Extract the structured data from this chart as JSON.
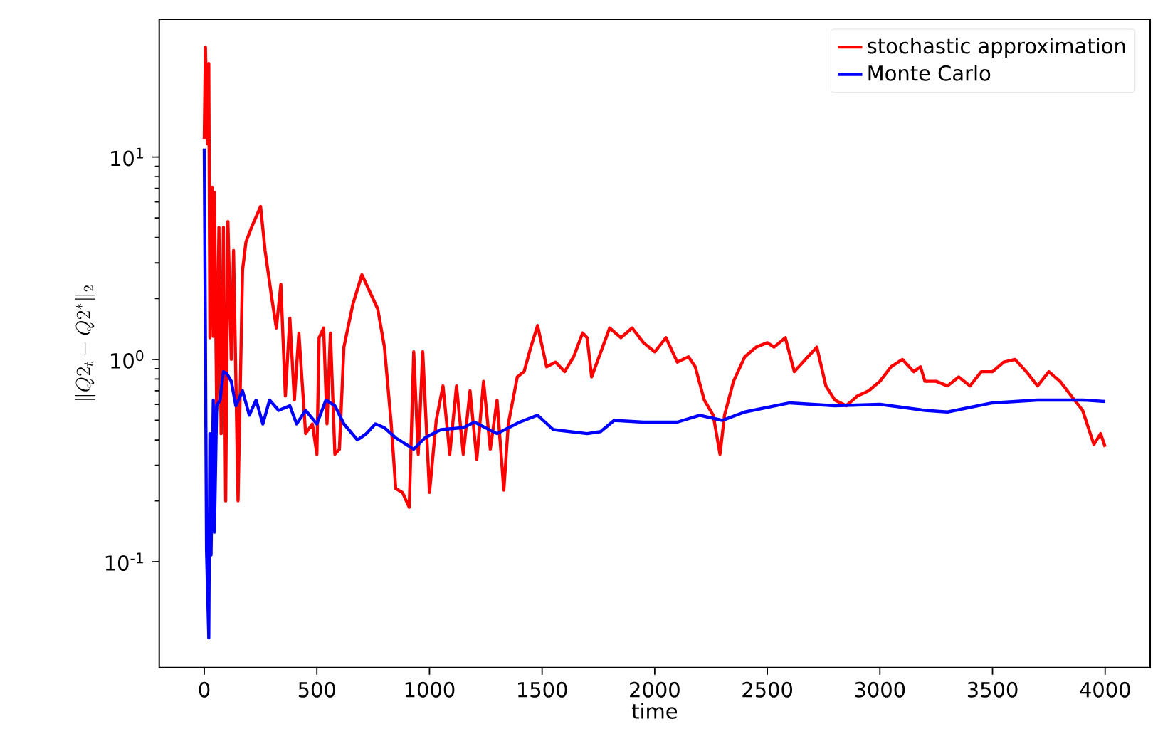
{
  "chart_data": {
    "type": "line",
    "xlabel": "time",
    "ylabel": "\\| Q2_t - Q2^* \\|_2",
    "xlim": [
      -200,
      4200
    ],
    "ylim": [
      0.03,
      48
    ],
    "log": "y",
    "grid": false,
    "legend": "top right",
    "marker": "none",
    "line_style": "solid",
    "xticks": [
      0,
      500,
      1000,
      1500,
      2000,
      2500,
      3000,
      3500,
      4000
    ],
    "yticks": [
      {
        "value": 0.1,
        "label": "10$^{-1}$"
      },
      {
        "value": 1,
        "label": "10$^{0}$"
      },
      {
        "value": 10,
        "label": "10$^{1}$"
      }
    ],
    "series": [
      {
        "name": "stochastic approximation",
        "color": "#ff0000",
        "x": [
          0,
          5,
          15,
          20,
          25,
          35,
          40,
          45,
          55,
          65,
          75,
          85,
          95,
          105,
          120,
          130,
          150,
          170,
          185,
          210,
          250,
          270,
          300,
          320,
          340,
          360,
          380,
          400,
          420,
          450,
          480,
          500,
          510,
          530,
          545,
          560,
          580,
          600,
          620,
          660,
          700,
          730,
          770,
          800,
          830,
          850,
          880,
          910,
          930,
          950,
          970,
          1000,
          1030,
          1060,
          1090,
          1120,
          1150,
          1180,
          1210,
          1240,
          1270,
          1300,
          1330,
          1350,
          1390,
          1420,
          1450,
          1480,
          1520,
          1560,
          1600,
          1640,
          1680,
          1700,
          1720,
          1800,
          1850,
          1900,
          1950,
          2000,
          2050,
          2100,
          2150,
          2180,
          2220,
          2260,
          2290,
          2310,
          2350,
          2400,
          2450,
          2500,
          2530,
          2580,
          2620,
          2680,
          2720,
          2760,
          2800,
          2850,
          2900,
          2950,
          3000,
          3050,
          3100,
          3150,
          3180,
          3200,
          3250,
          3300,
          3350,
          3400,
          3450,
          3500,
          3550,
          3600,
          3650,
          3700,
          3750,
          3800,
          3850,
          3900,
          3950,
          3980,
          4000
        ],
        "values": [
          12.3,
          35,
          11.6,
          29,
          1.28,
          7.1,
          1.3,
          6.7,
          0.56,
          4.5,
          0.43,
          4.5,
          0.2,
          4.8,
          1.0,
          3.45,
          0.2,
          2.77,
          3.8,
          4.5,
          5.7,
          3.45,
          2.0,
          1.43,
          2.35,
          0.66,
          1.6,
          0.63,
          1.35,
          0.43,
          0.48,
          0.34,
          1.28,
          1.43,
          0.48,
          1.35,
          0.34,
          0.36,
          1.15,
          1.88,
          2.62,
          2.22,
          1.78,
          1.15,
          0.48,
          0.23,
          0.22,
          0.186,
          1.09,
          0.34,
          1.09,
          0.22,
          0.5,
          0.74,
          0.34,
          0.74,
          0.34,
          0.7,
          0.32,
          0.78,
          0.36,
          0.63,
          0.226,
          0.48,
          0.82,
          0.87,
          1.15,
          1.47,
          0.92,
          0.97,
          0.87,
          1.03,
          1.35,
          1.28,
          0.82,
          1.43,
          1.28,
          1.43,
          1.21,
          1.09,
          1.28,
          0.97,
          1.03,
          0.92,
          0.63,
          0.53,
          0.34,
          0.53,
          0.78,
          1.03,
          1.15,
          1.21,
          1.15,
          1.28,
          0.87,
          1.03,
          1.15,
          0.74,
          0.63,
          0.59,
          0.66,
          0.7,
          0.78,
          0.92,
          1.0,
          0.87,
          0.92,
          0.78,
          0.78,
          0.74,
          0.82,
          0.74,
          0.87,
          0.87,
          0.97,
          1.0,
          0.87,
          0.74,
          0.87,
          0.78,
          0.66,
          0.56,
          0.38,
          0.43,
          0.37
        ]
      },
      {
        "name": "Monte Carlo",
        "color": "#0000ff",
        "x": [
          0,
          5,
          10,
          20,
          25,
          30,
          40,
          45,
          55,
          70,
          85,
          100,
          120,
          140,
          170,
          200,
          230,
          260,
          290,
          330,
          380,
          410,
          450,
          500,
          540,
          580,
          620,
          680,
          720,
          760,
          800,
          850,
          930,
          980,
          1050,
          1150,
          1200,
          1300,
          1400,
          1480,
          1550,
          1700,
          1760,
          1820,
          1950,
          2100,
          2200,
          2300,
          2400,
          2600,
          2800,
          3000,
          3200,
          3300,
          3500,
          3700,
          3900,
          4000
        ],
        "values": [
          11,
          1.28,
          0.114,
          0.042,
          0.43,
          0.108,
          0.63,
          0.14,
          0.59,
          0.63,
          0.87,
          0.85,
          0.78,
          0.59,
          0.7,
          0.53,
          0.63,
          0.48,
          0.63,
          0.56,
          0.59,
          0.48,
          0.56,
          0.48,
          0.63,
          0.59,
          0.48,
          0.4,
          0.43,
          0.48,
          0.46,
          0.41,
          0.36,
          0.41,
          0.45,
          0.46,
          0.49,
          0.43,
          0.49,
          0.53,
          0.45,
          0.43,
          0.44,
          0.5,
          0.49,
          0.49,
          0.53,
          0.5,
          0.55,
          0.61,
          0.59,
          0.6,
          0.56,
          0.55,
          0.61,
          0.63,
          0.63,
          0.62
        ]
      }
    ]
  }
}
